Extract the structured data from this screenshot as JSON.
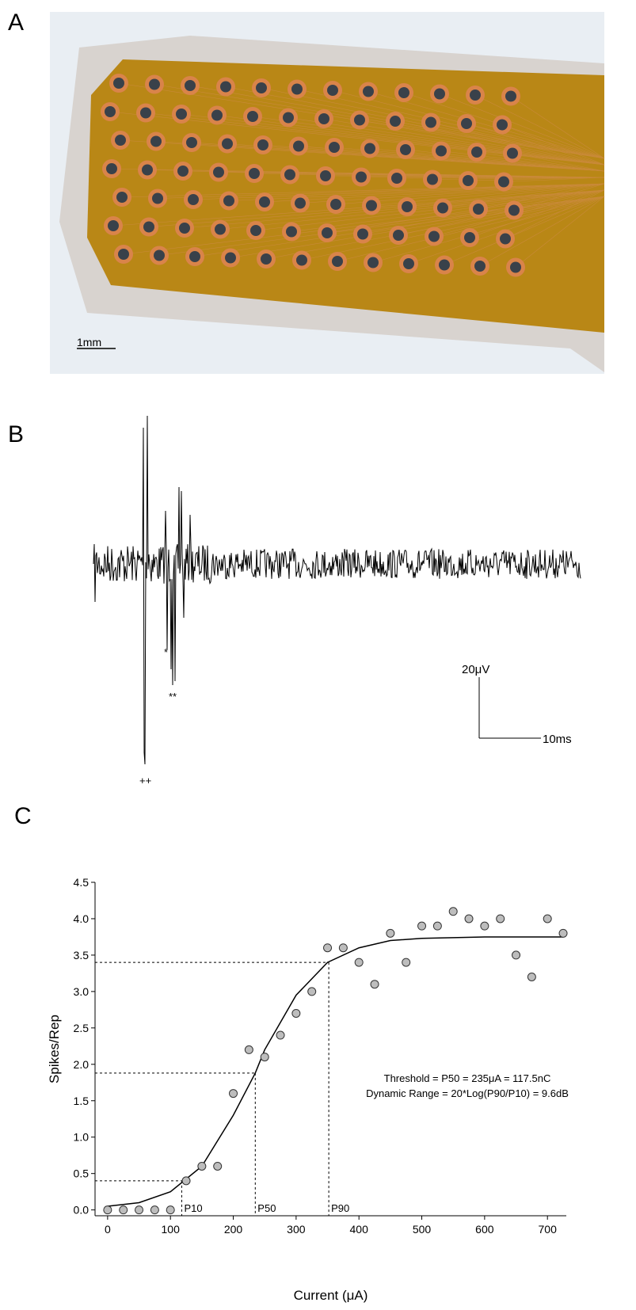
{
  "panel_labels": [
    "A",
    "B",
    "C"
  ],
  "panel_a": {
    "scale_bar": "1mm"
  },
  "panel_b": {
    "amplitude_bar": "20μV",
    "time_bar": "10ms",
    "marks": [
      "*",
      "**",
      "++"
    ]
  },
  "chart_data": {
    "type": "scatter",
    "xlabel": "Current (μA)",
    "ylabel": "Spikes/Rep",
    "x": [
      0,
      25,
      50,
      75,
      100,
      125,
      150,
      175,
      200,
      225,
      250,
      275,
      300,
      325,
      350,
      375,
      400,
      425,
      450,
      475,
      500,
      525,
      550,
      575,
      600,
      625,
      650,
      675,
      700,
      725
    ],
    "values": [
      0,
      0,
      0,
      0,
      0,
      0.4,
      0.6,
      0.6,
      1.6,
      2.2,
      2.1,
      2.4,
      2.7,
      3.0,
      3.6,
      3.6,
      3.4,
      3.1,
      3.8,
      3.4,
      3.9,
      3.9,
      4.1,
      4.0,
      3.9,
      4.0,
      3.5,
      3.2,
      4.0,
      3.8
    ],
    "color": "#bdbdbd",
    "fit": {
      "x": [
        0,
        50,
        100,
        150,
        200,
        235,
        250,
        300,
        350,
        400,
        450,
        500,
        600,
        725
      ],
      "values": [
        0.05,
        0.1,
        0.25,
        0.6,
        1.3,
        1.88,
        2.2,
        2.95,
        3.4,
        3.6,
        3.7,
        3.73,
        3.75,
        3.75
      ]
    },
    "reference_points": [
      {
        "label": "P10",
        "x": 118,
        "y": 0.4
      },
      {
        "label": "P50",
        "x": 235,
        "y": 1.88
      },
      {
        "label": "P90",
        "x": 352,
        "y": 3.4
      }
    ],
    "annotations": [
      "Threshold = P50 = 235μA = 117.5nC",
      "Dynamic Range = 20*Log(P90/P10) = 9.6dB"
    ],
    "xlim": [
      -20,
      730
    ],
    "ylim": [
      -0.08,
      4.5
    ],
    "xticks": [
      0,
      100,
      200,
      300,
      400,
      500,
      600,
      700
    ],
    "yticks": [
      {
        "value": 0,
        "label": "0.0"
      },
      0.5,
      {
        "value": 1,
        "label": "1.0"
      },
      1.5,
      {
        "value": 2,
        "label": "2.0"
      },
      2.5,
      {
        "value": 3,
        "label": "3.0"
      },
      3.5,
      {
        "value": 4,
        "label": "4.0"
      },
      4.5
    ]
  }
}
